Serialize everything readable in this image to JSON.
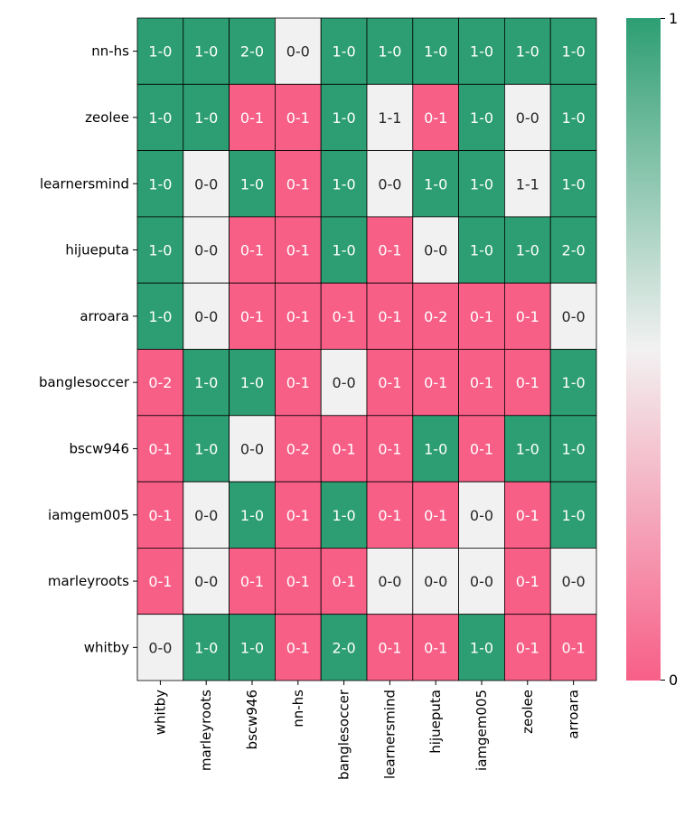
{
  "chart_data": {
    "type": "heatmap",
    "title": "",
    "xlabel": "",
    "ylabel": "",
    "x_categories": [
      "whitby",
      "marleyroots",
      "bscw946",
      "nn-hs",
      "banglesoccer",
      "learnersmind",
      "hijueputa",
      "iamgem005",
      "zeolee",
      "arroara"
    ],
    "y_categories": [
      "nn-hs",
      "zeolee",
      "learnersmind",
      "hijueputa",
      "arroara",
      "banglesoccer",
      "bscw946",
      "iamgem005",
      "marleyroots",
      "whitby"
    ],
    "annotations": [
      [
        "1-0",
        "1-0",
        "2-0",
        "0-0",
        "1-0",
        "1-0",
        "1-0",
        "1-0",
        "1-0",
        "1-0"
      ],
      [
        "1-0",
        "1-0",
        "0-1",
        "0-1",
        "1-0",
        "1-1",
        "0-1",
        "1-0",
        "0-0",
        "1-0"
      ],
      [
        "1-0",
        "0-0",
        "1-0",
        "0-1",
        "1-0",
        "0-0",
        "1-0",
        "1-0",
        "1-1",
        "1-0"
      ],
      [
        "1-0",
        "0-0",
        "0-1",
        "0-1",
        "1-0",
        "0-1",
        "0-0",
        "1-0",
        "1-0",
        "2-0"
      ],
      [
        "1-0",
        "0-0",
        "0-1",
        "0-1",
        "0-1",
        "0-1",
        "0-2",
        "0-1",
        "0-1",
        "0-0"
      ],
      [
        "0-2",
        "1-0",
        "1-0",
        "0-1",
        "0-0",
        "0-1",
        "0-1",
        "0-1",
        "0-1",
        "1-0"
      ],
      [
        "0-1",
        "1-0",
        "0-0",
        "0-2",
        "0-1",
        "0-1",
        "1-0",
        "0-1",
        "1-0",
        "1-0"
      ],
      [
        "0-1",
        "0-0",
        "1-0",
        "0-1",
        "1-0",
        "0-1",
        "0-1",
        "0-0",
        "0-1",
        "1-0"
      ],
      [
        "0-1",
        "0-0",
        "0-1",
        "0-1",
        "0-1",
        "0-0",
        "0-0",
        "0-0",
        "0-1",
        "0-0"
      ],
      [
        "0-0",
        "1-0",
        "1-0",
        "0-1",
        "2-0",
        "0-1",
        "0-1",
        "1-0",
        "0-1",
        "0-1"
      ]
    ],
    "values": [
      [
        1,
        1,
        1,
        0.5,
        1,
        1,
        1,
        1,
        1,
        1
      ],
      [
        1,
        1,
        0,
        0,
        1,
        0.5,
        0,
        1,
        0.5,
        1
      ],
      [
        1,
        0.5,
        1,
        0,
        1,
        0.5,
        1,
        1,
        0.5,
        1
      ],
      [
        1,
        0.5,
        0,
        0,
        1,
        0,
        0.5,
        1,
        1,
        1
      ],
      [
        1,
        0.5,
        0,
        0,
        0,
        0,
        0,
        0,
        0,
        0.5
      ],
      [
        0,
        1,
        1,
        0,
        0.5,
        0,
        0,
        0,
        0,
        1
      ],
      [
        0,
        1,
        0.5,
        0,
        0,
        0,
        1,
        0,
        1,
        1
      ],
      [
        0,
        0.5,
        1,
        0,
        1,
        0,
        0,
        0.5,
        0,
        1
      ],
      [
        0,
        0.5,
        0,
        0,
        0,
        0.5,
        0.5,
        0.5,
        0,
        0.5
      ],
      [
        0.5,
        1,
        1,
        0,
        1,
        0,
        0,
        1,
        0,
        0
      ]
    ],
    "colorbar": {
      "min": 0,
      "max": 1,
      "ticks": [
        "0",
        "1"
      ],
      "colors": {
        "low": "#f75f87",
        "mid": "#f2f1f1",
        "high": "#2d9e73"
      }
    },
    "cell_text_colors": {
      "on_dark": "#ffffff",
      "on_light": "#262626"
    },
    "grid": true,
    "legend": "colorbar-right"
  }
}
